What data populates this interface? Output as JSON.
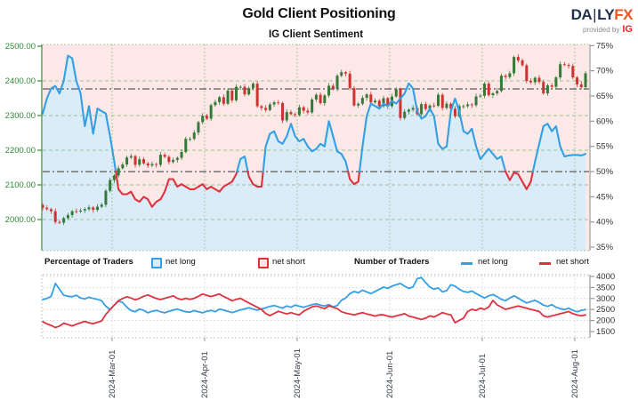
{
  "header": {
    "title": "Gold Client Positioning",
    "subtitle": "IG Client Sentiment",
    "logo": {
      "daily": "DA",
      "bar": "|",
      "ly": "LY",
      "fx": "FX",
      "provided_by": "provided by",
      "ig": "IG"
    }
  },
  "legend": {
    "group1_label": "Percentage of Traders",
    "group1_long": "net long",
    "group1_short": "net short",
    "group2_label": "Number of Traders",
    "group2_long": "net long",
    "group2_short": "net short"
  },
  "colors": {
    "pink_bg": "#fce8e6",
    "blue_fill": "#dbecf9",
    "blue_line": "#349fe3",
    "red_line": "#df323f",
    "candle_up": "#357a38",
    "candle_down": "#cf3232",
    "axis_green": "#2e8b33",
    "grid_green": "#7cb87c",
    "dot_green": "#8fbf8f",
    "axis_gray": "#999999",
    "text_dark": "#333333",
    "date_text": "#39404d",
    "refline_gray": "#666666",
    "grid_gray": "#c9c9c9",
    "border_gray": "#b5b5b5"
  },
  "chart_data": [
    {
      "type": "candlestick+line",
      "title": "IG Client Sentiment",
      "left_axis_label_ticks": [
        "2500.00",
        "2400.00",
        "2300.00",
        "2200.00",
        "2100.00",
        "2000.00"
      ],
      "left_axis_values": [
        2500,
        2400,
        2300,
        2200,
        2100,
        2000
      ],
      "right_axis_label_ticks": [
        "75%",
        "70%",
        "65%",
        "60%",
        "55%",
        "50%",
        "45%",
        "40%",
        "35%"
      ],
      "right_axis_values": [
        75,
        70,
        65,
        60,
        55,
        50,
        45,
        40,
        35
      ],
      "reference_lines_pct": [
        66.4,
        50
      ],
      "x_tick_labels": [
        "2024-Mar-01",
        "2024-Apr-01",
        "2024-May-01",
        "2024-Jun-01",
        "2024-Jul-01",
        "2024-Aug-01"
      ],
      "candles_close": [
        2034,
        2030,
        2024,
        1993,
        1991,
        2004,
        2013,
        2024,
        2023,
        2026,
        2030,
        2035,
        2028,
        2037,
        2043,
        2083,
        2114,
        2127,
        2148,
        2159,
        2179,
        2183,
        2158,
        2174,
        2162,
        2156,
        2160,
        2158,
        2187,
        2181,
        2166,
        2172,
        2178,
        2195,
        2233,
        2233,
        2251,
        2281,
        2299,
        2291,
        2330,
        2339,
        2353,
        2334,
        2372,
        2344,
        2383,
        2383,
        2361,
        2379,
        2392,
        2327,
        2322,
        2316,
        2332,
        2338,
        2336,
        2286,
        2310,
        2304,
        2302,
        2324,
        2314,
        2309,
        2346,
        2360,
        2336,
        2358,
        2386,
        2377,
        2415,
        2425,
        2421,
        2379,
        2329,
        2334,
        2351,
        2361,
        2338,
        2343,
        2327,
        2350,
        2327,
        2355,
        2376,
        2293,
        2311,
        2317,
        2322,
        2304,
        2333,
        2319,
        2329,
        2328,
        2360,
        2322,
        2334,
        2320,
        2298,
        2327,
        2327,
        2332,
        2330,
        2355,
        2357,
        2392,
        2359,
        2364,
        2371,
        2415,
        2411,
        2422,
        2469,
        2459,
        2445,
        2400,
        2396,
        2409,
        2397,
        2364,
        2387,
        2383,
        2410,
        2448,
        2446,
        2443,
        2410,
        2390,
        2382,
        2422
      ],
      "sentiment_pct_net_long": [
        61.5,
        64.5,
        66.5,
        67,
        65.5,
        68,
        73,
        72.5,
        68,
        65.5,
        59,
        63,
        57.5,
        62.5,
        62,
        61.5,
        57,
        52,
        46.5,
        45.5,
        45.5,
        46,
        44.5,
        44,
        45,
        44.5,
        43,
        44,
        44.5,
        46,
        48.5,
        48.5,
        47,
        47.5,
        47,
        46.5,
        46.5,
        47,
        47.5,
        46.5,
        47,
        46.5,
        46,
        47,
        47.5,
        48,
        49.5,
        52.5,
        53,
        49,
        47.5,
        47,
        47,
        55,
        57.5,
        58,
        56,
        55.5,
        57,
        59.5,
        57,
        56,
        56.5,
        55,
        54,
        54.5,
        55.5,
        55,
        60,
        57,
        54,
        53.5,
        52,
        48.5,
        47.5,
        48,
        55,
        61,
        63.5,
        63,
        62.5,
        63.5,
        63,
        64,
        63.5,
        64.5,
        65.5,
        67.5,
        66.5,
        62,
        60.5,
        61,
        62.5,
        61,
        55.5,
        54.5,
        55,
        62,
        64.5,
        62,
        58,
        57.5,
        58.5,
        55,
        52.5,
        53.5,
        54.5,
        53.5,
        52.5,
        53,
        50,
        48.3,
        49.8,
        49.5,
        48,
        46.5,
        48,
        52,
        55.5,
        59,
        59.5,
        58,
        59,
        55,
        53,
        53.2,
        53.3,
        53.3,
        53.2,
        53.5
      ]
    },
    {
      "type": "line",
      "right_axis_label_ticks": [
        "4000",
        "3500",
        "3000",
        "2500",
        "2000",
        "1500"
      ],
      "right_axis_values": [
        4000,
        3500,
        3000,
        2500,
        2000,
        1500
      ],
      "x_tick_labels": [
        "2024-Mar-01",
        "2024-Apr-01",
        "2024-May-01",
        "2024-Jun-01",
        "2024-Jul-01",
        "2024-Aug-01"
      ],
      "series": [
        {
          "name": "net long",
          "values": [
            2950,
            3000,
            3100,
            3680,
            3420,
            3150,
            3100,
            3080,
            3150,
            3020,
            2980,
            3060,
            3000,
            2960,
            2900,
            2650,
            2500,
            2700,
            2880,
            2820,
            2600,
            2450,
            2400,
            2520,
            2460,
            2350,
            2420,
            2460,
            2400,
            2350,
            2420,
            2470,
            2520,
            2450,
            2400,
            2380,
            2450,
            2400,
            2350,
            2420,
            2460,
            2400,
            2520,
            2470,
            2420,
            2360,
            2420,
            2480,
            2530,
            2580,
            2520,
            2470,
            2530,
            2580,
            2640,
            2680,
            2620,
            2560,
            2660,
            2600,
            2700,
            2650,
            2600,
            2660,
            2720,
            2760,
            2700,
            2660,
            2720,
            2620,
            2680,
            2920,
            3020,
            3220,
            3320,
            3260,
            3380,
            3300,
            3220,
            3320,
            3420,
            3520,
            3460,
            3560,
            3620,
            3680,
            3560,
            3460,
            3520,
            3900,
            3950,
            3720,
            3520,
            3420,
            3480,
            3300,
            3360,
            3620,
            3560,
            3420,
            3320,
            3280,
            3340,
            3220,
            3120,
            3020,
            3120,
            3180,
            3080,
            2960,
            2900,
            3020,
            3120,
            3020,
            2900,
            2800,
            2860,
            2920,
            2820,
            2700,
            2640,
            2720,
            2600,
            2540,
            2500,
            2560,
            2460,
            2400,
            2460,
            2500
          ]
        },
        {
          "name": "net short",
          "values": [
            1950,
            1850,
            1780,
            1680,
            1750,
            1880,
            1820,
            1760,
            1830,
            1900,
            1960,
            1900,
            1860,
            1920,
            1980,
            2280,
            2500,
            2700,
            2900,
            3000,
            3080,
            3020,
            2940,
            3010,
            3100,
            3160,
            3080,
            3000,
            2950,
            3010,
            3060,
            3120,
            3010,
            2950,
            3010,
            2960,
            3010,
            3100,
            3200,
            3140,
            3090,
            3150,
            3200,
            3090,
            3000,
            2900,
            2960,
            3010,
            2900,
            2800,
            2700,
            2600,
            2500,
            2320,
            2220,
            2320,
            2420,
            2360,
            2300,
            2360,
            2300,
            2260,
            2420,
            2520,
            2620,
            2660,
            2600,
            2540,
            2660,
            2600,
            2540,
            2400,
            2340,
            2300,
            2260,
            2310,
            2360,
            2300,
            2260,
            2200,
            2260,
            2260,
            2200,
            2160,
            2210,
            2260,
            2310,
            2200,
            2160,
            2100,
            2050,
            2110,
            2210,
            2160,
            2260,
            2360,
            2300,
            2260,
            1900,
            2010,
            2110,
            2410,
            2510,
            2460,
            2560,
            2510,
            2610,
            2910,
            2710,
            2610,
            2510,
            2560,
            2610,
            2660,
            2610,
            2560,
            2510,
            2460,
            2410,
            2210,
            2160,
            2210,
            2260,
            2310,
            2360,
            2410,
            2310,
            2260,
            2210,
            2260
          ]
        }
      ]
    }
  ]
}
